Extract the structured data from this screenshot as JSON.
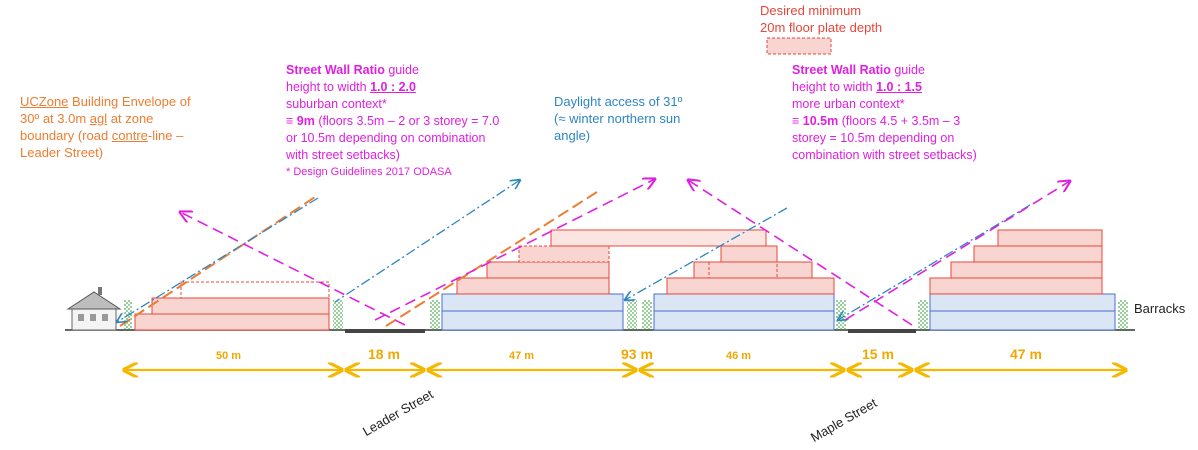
{
  "annotations": {
    "ucz_l1_a": "UCZone",
    "ucz_l1_b": " Building Envelope of",
    "ucz_l2_a": "30º at 3.0m ",
    "ucz_l2_b": "agl",
    "ucz_l2_c": " at zone",
    "ucz_l3_a": "boundary (road ",
    "ucz_l3_b": "contre",
    "ucz_l3_c": "-line –",
    "ucz_l4": "Leader Street)",
    "sw1_l1_a": "Street Wall Ratio",
    "sw1_l1_b": " guide",
    "sw1_l2_a": "height to width ",
    "sw1_l2_b": "1.0 : 2.0",
    "sw1_l3": "suburban context*",
    "sw1_l4_a": "≡ ",
    "sw1_l4_b": "9m",
    "sw1_l4_c": " (floors 3.5m – 2 or 3 storey = 7.0",
    "sw1_l5": "or 10.5m depending on combination",
    "sw1_l6": "with street setbacks)",
    "sw1_l7": "* Design Guidelines 2017 ODASA",
    "day_l1": "Daylight access of 31º",
    "day_l2": "(≈ winter northern sun",
    "day_l3": "angle)",
    "des_l1": "Desired minimum",
    "des_l2": "20m floor plate depth",
    "sw2_l1_a": "Street Wall Ratio",
    "sw2_l1_b": " guide",
    "sw2_l2_a": "height to width ",
    "sw2_l2_b": "1.0 : 1.5",
    "sw2_l3": "more urban context*",
    "sw2_l4_a": "≡ ",
    "sw2_l4_b": "10.5m",
    "sw2_l4_c": " (floors 4.5 + 3.5m – 3",
    "sw2_l5": "storey = 10.5m depending on",
    "sw2_l6": "combination with street setbacks)",
    "barracks": "Barracks"
  },
  "dimensions": {
    "d1": "50 m",
    "d2": "18 m",
    "d3": "47 m",
    "d4": "93 m",
    "d5": "46 m",
    "d6": "15 m",
    "d7": "47 m"
  },
  "streets": {
    "leader": "Leader Street",
    "maple": "Maple Street"
  },
  "colors": {
    "orange": "#ed7d31",
    "magenta": "#e020e0",
    "blue": "#2e86c1",
    "red_fill": "#f9d5d2",
    "red_edge": "#e8463a",
    "blue_fill": "#dae6f4",
    "blue_edge": "#4a6fd0",
    "dim_gold": "#f5b800"
  },
  "icons": [
    "house-icon"
  ]
}
